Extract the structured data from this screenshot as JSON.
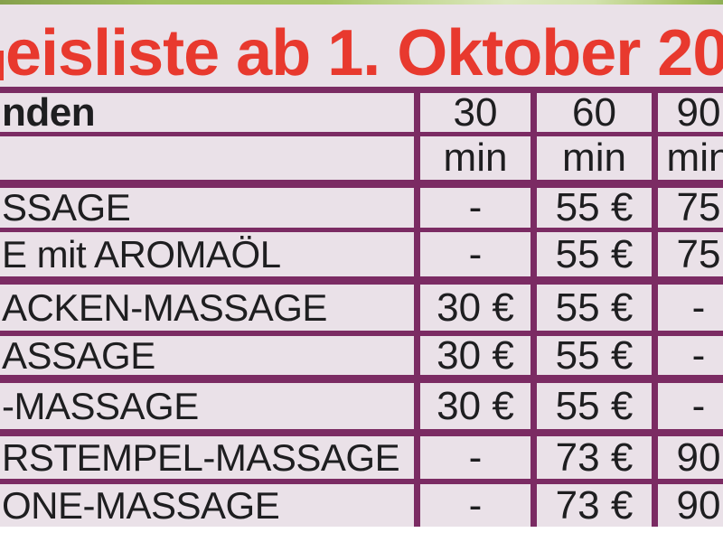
{
  "page": {
    "title": "eisliste ab 1. Oktober 20"
  },
  "table": {
    "header": {
      "label": "nden",
      "c30": "30",
      "c60": "60",
      "c90": "90"
    },
    "units": {
      "label": "",
      "c30": "min",
      "c60": "min",
      "c90": "min"
    },
    "rows": [
      {
        "label": "SSAGE",
        "p30": "-",
        "p60": "55 €",
        "p90": "75"
      },
      {
        "label": "E mit AROMAÖL",
        "p30": "-",
        "p60": "55 €",
        "p90": "75"
      },
      {
        "label": "ACKEN-MASSAGE",
        "p30": "30 €",
        "p60": "55 €",
        "p90": "-"
      },
      {
        "label": "ASSAGE",
        "p30": "30 €",
        "p60": "55 €",
        "p90": "-"
      },
      {
        "label": "-MASSAGE",
        "p30": "30 €",
        "p60": "55 €",
        "p90": "-"
      },
      {
        "label": "RSTEMPEL-MASSAGE",
        "p30": "-",
        "p60": "73 €",
        "p90": "90"
      },
      {
        "label": "ONE-MASSAGE",
        "p30": "-",
        "p60": "73 €",
        "p90": "90"
      }
    ]
  },
  "colors": {
    "accent_red": "#E8392E",
    "border_purple": "#7B2B63",
    "background_pink": "#EAE1E8",
    "strip_green": "#A3C261"
  }
}
